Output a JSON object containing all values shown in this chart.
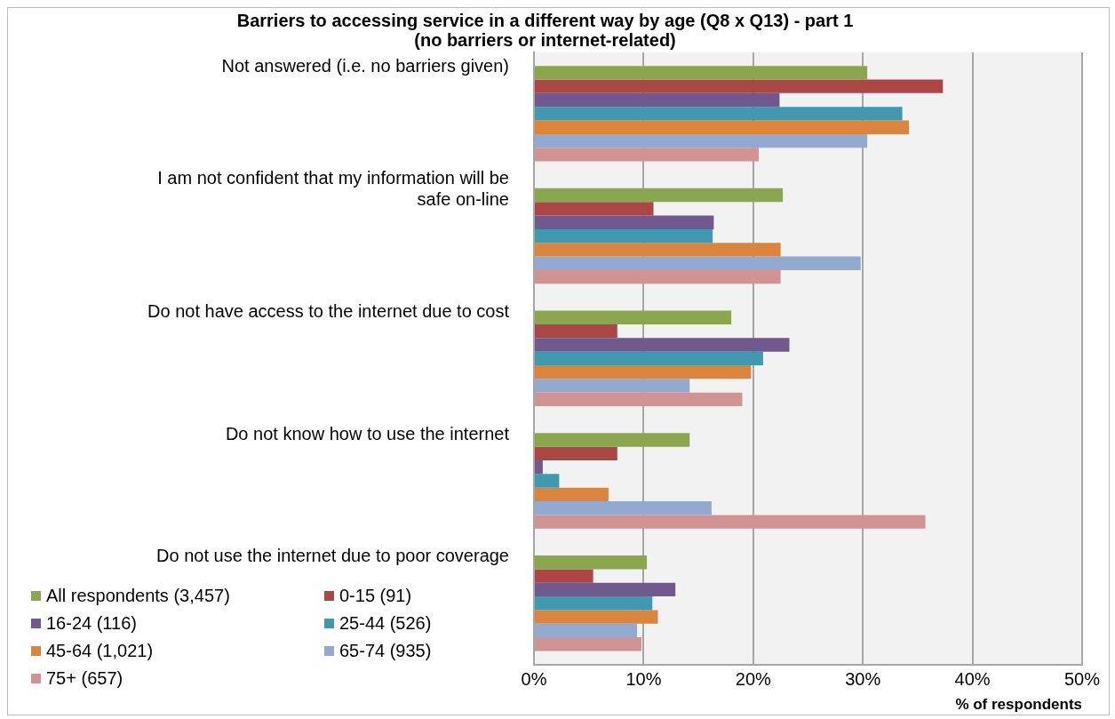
{
  "chart_data": {
    "type": "bar",
    "orientation": "horizontal",
    "title": "Barriers to accessing service in a different way by age (Q8 x Q13) - part 1\n(no barriers or internet-related)",
    "xlabel": "% of respondents",
    "categories": [
      "Not answered (i.e. no barriers given)",
      "I am not confident that my information will be safe on-line",
      "Do not have access to the internet due to cost",
      "Do not know how to use the internet",
      "Do not use the internet due to poor coverage"
    ],
    "series": [
      {
        "name": "All respondents (3,457)",
        "color": "#8aa64e",
        "values": [
          30.4,
          22.7,
          18.0,
          14.2,
          10.3
        ]
      },
      {
        "name": "0-15 (91)",
        "color": "#aa4643",
        "values": [
          37.3,
          10.9,
          7.6,
          7.6,
          5.4
        ]
      },
      {
        "name": "16-24 (116)",
        "color": "#71588f",
        "values": [
          22.4,
          16.4,
          23.3,
          0.8,
          12.9
        ]
      },
      {
        "name": "25-44 (526)",
        "color": "#4198af",
        "values": [
          33.6,
          16.3,
          20.9,
          2.3,
          10.8
        ]
      },
      {
        "name": "45-64 (1,021)",
        "color": "#db843d",
        "values": [
          34.2,
          22.5,
          19.8,
          6.8,
          11.3
        ]
      },
      {
        "name": "65-74 (935)",
        "color": "#93a9cf",
        "values": [
          30.4,
          29.8,
          14.2,
          16.2,
          9.4
        ]
      },
      {
        "name": "75+ (657)",
        "color": "#d19392",
        "values": [
          20.5,
          22.5,
          19.0,
          35.7,
          9.8
        ]
      }
    ],
    "xlim": [
      0,
      50
    ],
    "xticks": [
      {
        "value": 0,
        "label": "0%"
      },
      {
        "value": 10,
        "label": "10%"
      },
      {
        "value": 20,
        "label": "20%"
      },
      {
        "value": 30,
        "label": "30%"
      },
      {
        "value": 40,
        "label": "40%"
      },
      {
        "value": 50,
        "label": "50%"
      }
    ],
    "grid": "x",
    "legend": "bottom left"
  }
}
